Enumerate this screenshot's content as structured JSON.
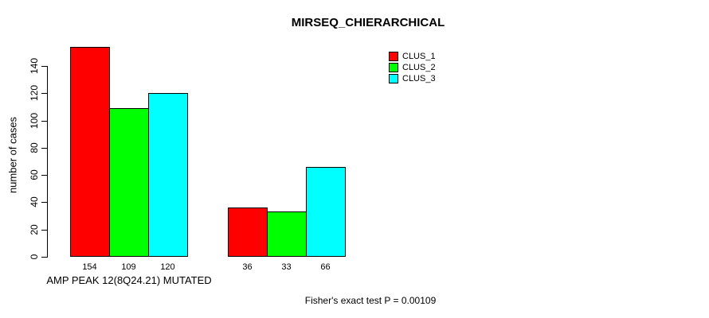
{
  "chart_data": {
    "type": "bar",
    "title": "MIRSEQ_CHIERARCHICAL",
    "ylabel": "number of cases",
    "xlabel": "AMP PEAK 12(8Q24.21) MUTATED",
    "annotation": "Fisher's exact test P = 0.00109",
    "ylim": [
      0,
      140
    ],
    "yticks": [
      0,
      20,
      40,
      60,
      80,
      100,
      120,
      140
    ],
    "grid": false,
    "legend_position": "top-right",
    "bar_value_labels_shown": true,
    "series": [
      {
        "name": "CLUS_1",
        "color": "#ff0000"
      },
      {
        "name": "CLUS_2",
        "color": "#00ff00"
      },
      {
        "name": "CLUS_3",
        "color": "#00ffff"
      }
    ],
    "groups": [
      {
        "values": [
          154,
          109,
          120
        ]
      },
      {
        "values": [
          36,
          33,
          66
        ]
      }
    ]
  }
}
